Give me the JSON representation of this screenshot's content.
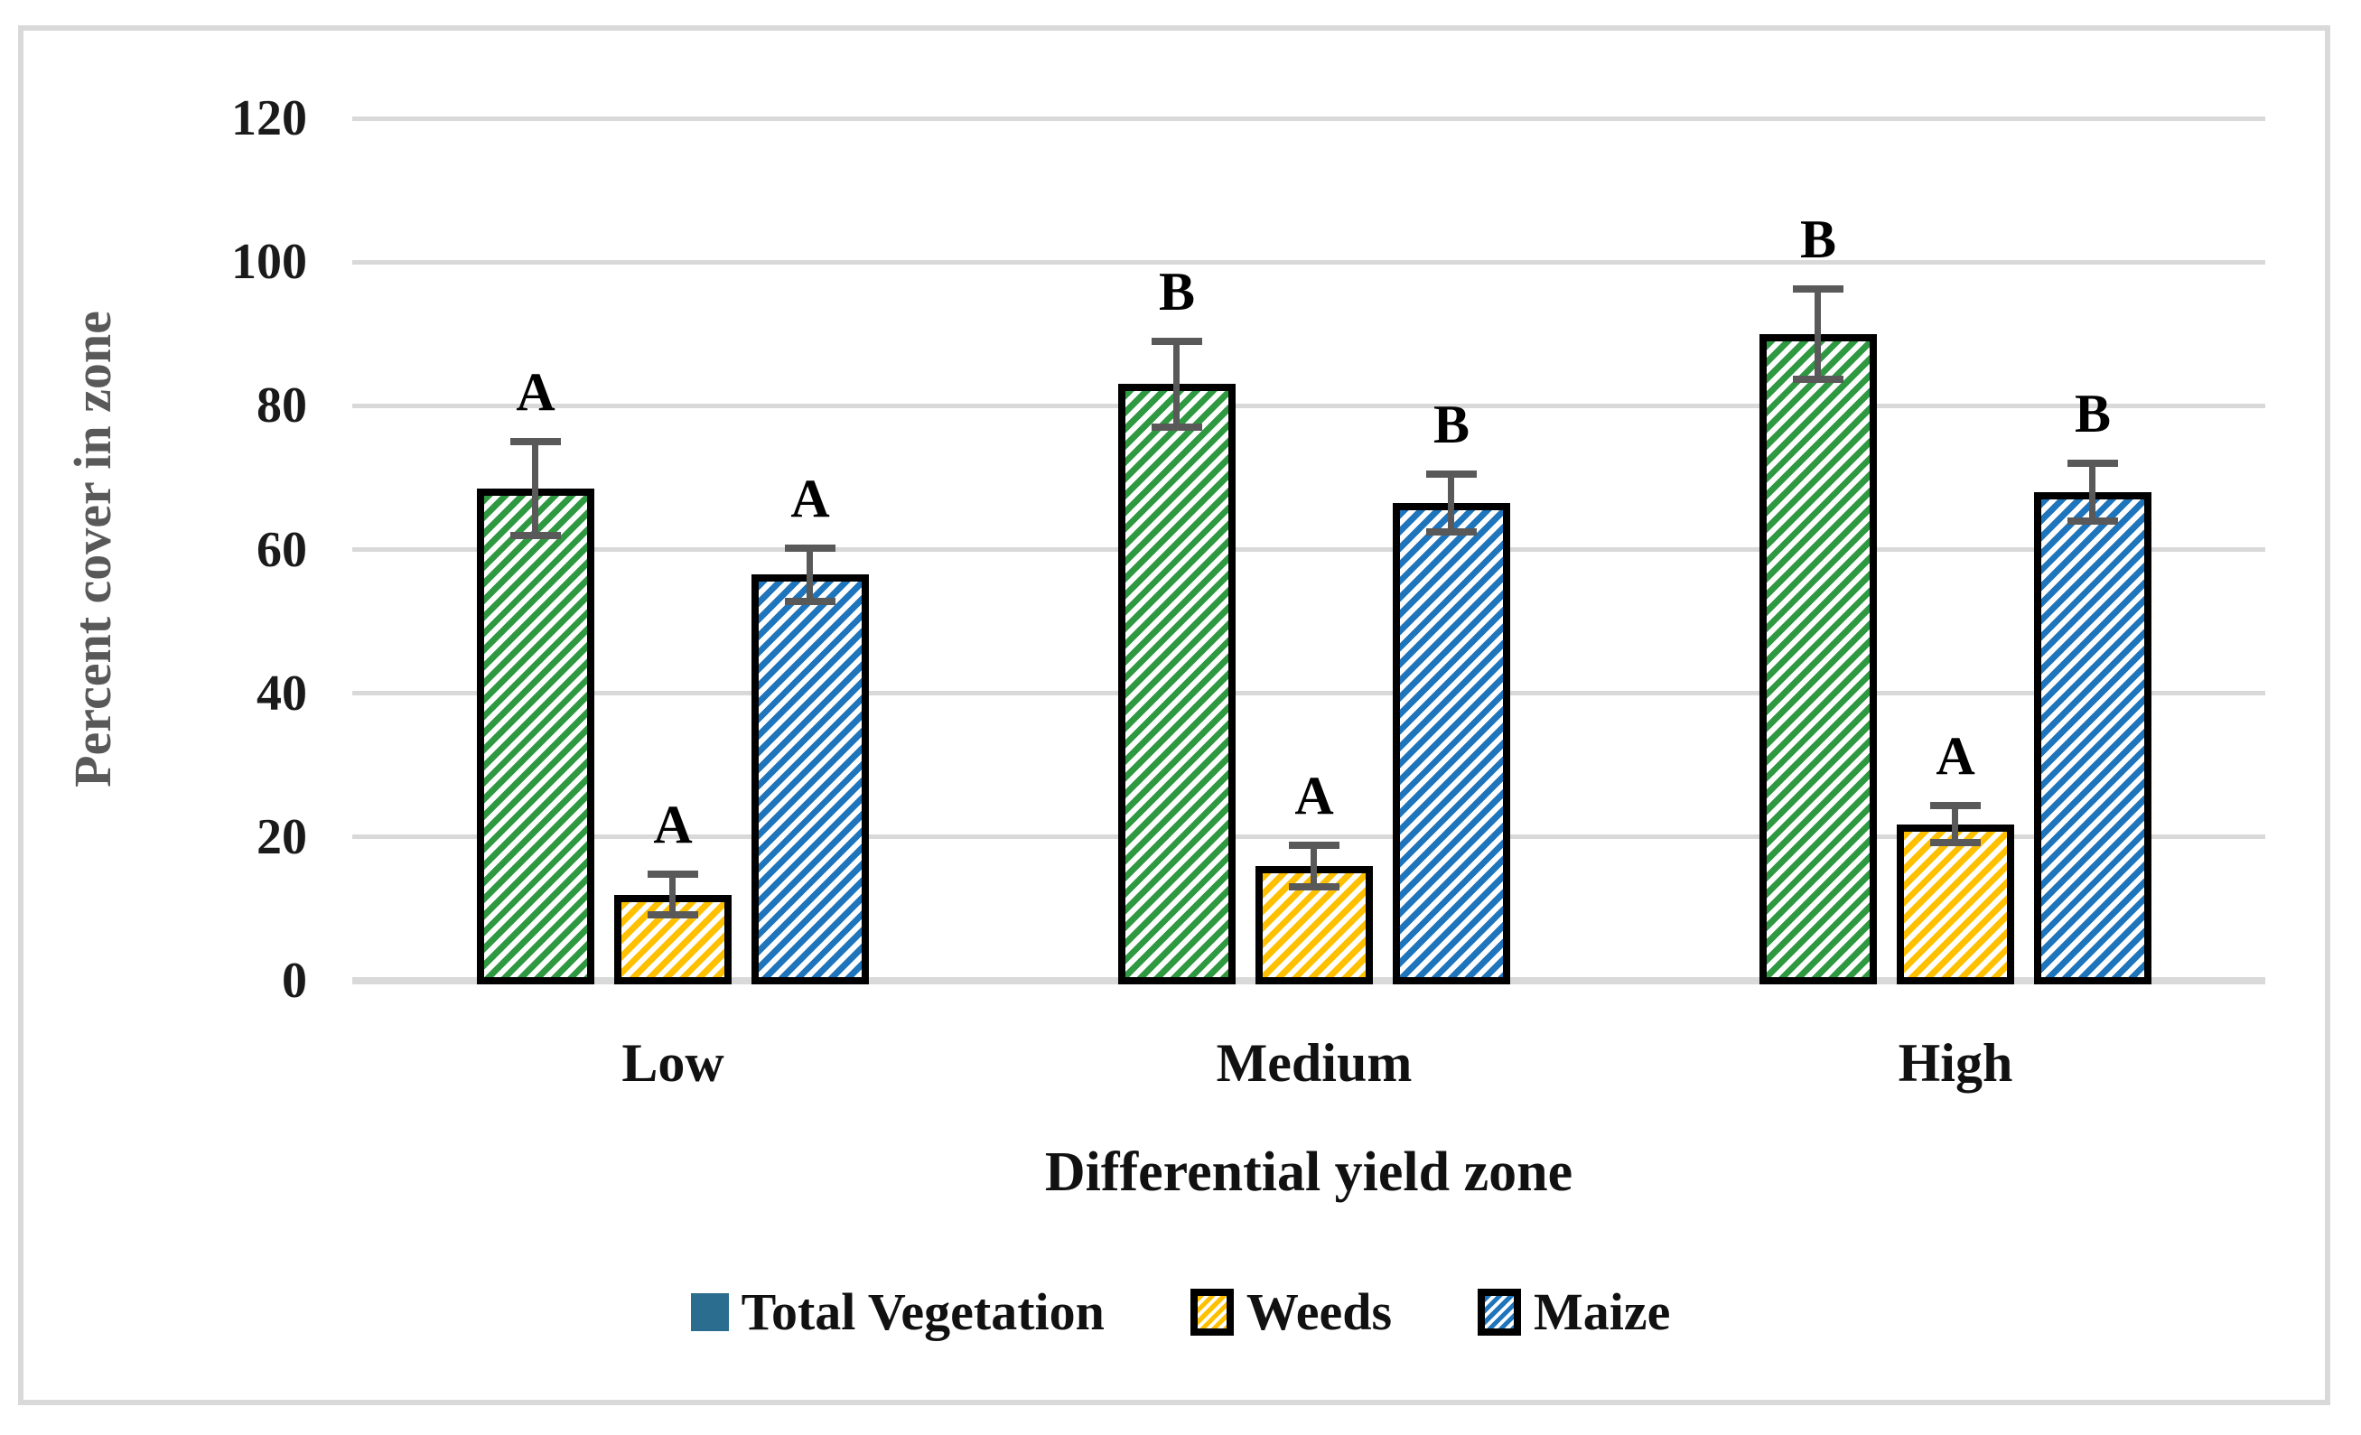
{
  "figure": {
    "border_color": "#d9d9d9",
    "background_color": "#ffffff"
  },
  "chart_data": {
    "type": "bar",
    "title": "",
    "xlabel": "Differential yield zone",
    "ylabel": "Percent cover in zone",
    "ylim": [
      0,
      120
    ],
    "yticks": [
      0,
      20,
      40,
      60,
      80,
      100,
      120
    ],
    "grid": "horizontal",
    "grid_color": "#d9d9d9",
    "legend_position": "bottom",
    "categories": [
      "Low",
      "Medium",
      "High"
    ],
    "series": [
      {
        "name": "Total Vegetation",
        "values": [
          68.5,
          83,
          90
        ],
        "error_bars": [
          6.5,
          6,
          6.3
        ],
        "sig_letters": [
          "A",
          "B",
          "B"
        ],
        "color": "#2f9941",
        "hatch": "diagonal",
        "legend_swatch": "solid",
        "legend_swatch_color": "#2a6d8f"
      },
      {
        "name": "Weeds",
        "values": [
          12,
          16,
          21.8
        ],
        "error_bars": [
          2.8,
          2.9,
          2.6
        ],
        "sig_letters": [
          "A",
          "A",
          "A"
        ],
        "color": "#ffc000",
        "hatch": "diagonal",
        "legend_swatch": "hatch"
      },
      {
        "name": "Maize",
        "values": [
          56.5,
          66.5,
          68
        ],
        "error_bars": [
          3.7,
          4,
          4
        ],
        "sig_letters": [
          "A",
          "B",
          "B"
        ],
        "color": "#1f75bc",
        "hatch": "diagonal",
        "legend_swatch": "hatch"
      }
    ],
    "error_bar_color": "#595959",
    "bar_border_color": "#000000",
    "ytick_label_color": "#1a1a1a",
    "xtick_label_color": "#111111",
    "y_axis_title_color": "#595959",
    "x_axis_title_color": "#111111"
  }
}
